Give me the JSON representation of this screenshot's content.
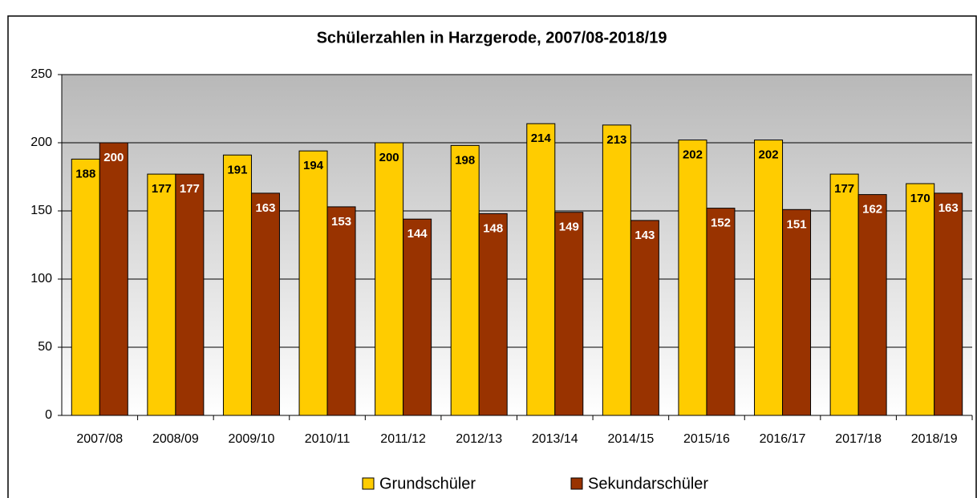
{
  "chart_data": {
    "type": "bar",
    "title": "Schülerzahlen in Harzgerode, 2007/08-2018/19",
    "categories": [
      "2007/08",
      "2008/09",
      "2009/10",
      "2010/11",
      "2011/12",
      "2012/13",
      "2013/14",
      "2014/15",
      "2015/16",
      "2016/17",
      "2017/18",
      "2018/19"
    ],
    "series": [
      {
        "name": "Grundschüler",
        "color": "#ffcc00",
        "values": [
          188,
          177,
          191,
          194,
          200,
          198,
          214,
          213,
          202,
          202,
          177,
          170
        ]
      },
      {
        "name": "Sekundarschüler",
        "color": "#993300",
        "values": [
          200,
          177,
          163,
          153,
          144,
          148,
          149,
          143,
          152,
          151,
          162,
          163
        ]
      }
    ],
    "ylim": [
      0,
      250
    ],
    "yticks": [
      0,
      50,
      100,
      150,
      200,
      250
    ],
    "grid": true,
    "legend": "bottom"
  }
}
